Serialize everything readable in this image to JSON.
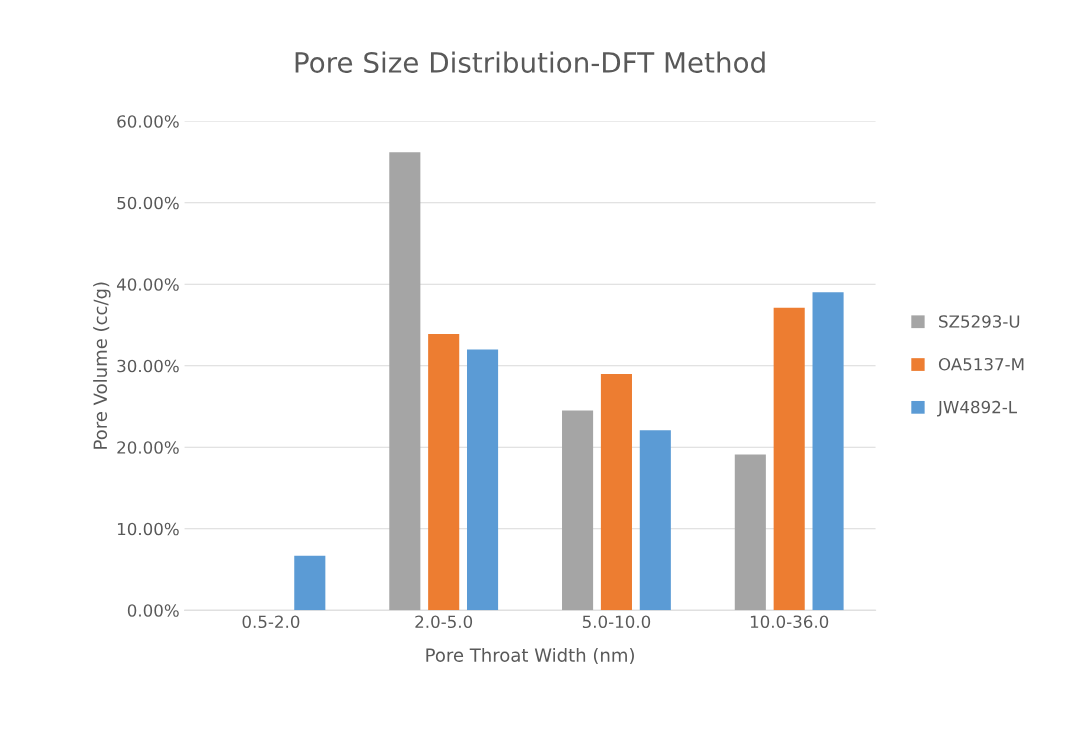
{
  "chart_data": {
    "type": "bar",
    "title": "Pore Size Distribution-DFT Method",
    "xlabel": "Pore Throat Width (nm)",
    "ylabel": "Pore Volume (cc/g)",
    "categories": [
      "0.5-2.0",
      "2.0-5.0",
      "5.0-10.0",
      "10.0-36.0"
    ],
    "series": [
      {
        "name": "SZ5293-U",
        "color": "#a5a5a5",
        "values": [
          0,
          56.2,
          24.5,
          19.1
        ]
      },
      {
        "name": "OA5137-M",
        "color": "#ed7d31",
        "values": [
          0,
          33.9,
          29.0,
          37.1
        ]
      },
      {
        "name": "JW4892-L",
        "color": "#5b9bd5",
        "values": [
          6.7,
          32.0,
          22.1,
          39.0
        ]
      }
    ],
    "ylim": [
      0,
      60
    ],
    "yticks": [
      {
        "value": 0,
        "label": "0.00%"
      },
      {
        "value": 10,
        "label": "10.00%"
      },
      {
        "value": 20,
        "label": "20.00%"
      },
      {
        "value": 30,
        "label": "30.00%"
      },
      {
        "value": 40,
        "label": "40.00%"
      },
      {
        "value": 50,
        "label": "50.00%"
      },
      {
        "value": 60,
        "label": "60.00%"
      }
    ],
    "grid": "y",
    "legend": "right"
  }
}
